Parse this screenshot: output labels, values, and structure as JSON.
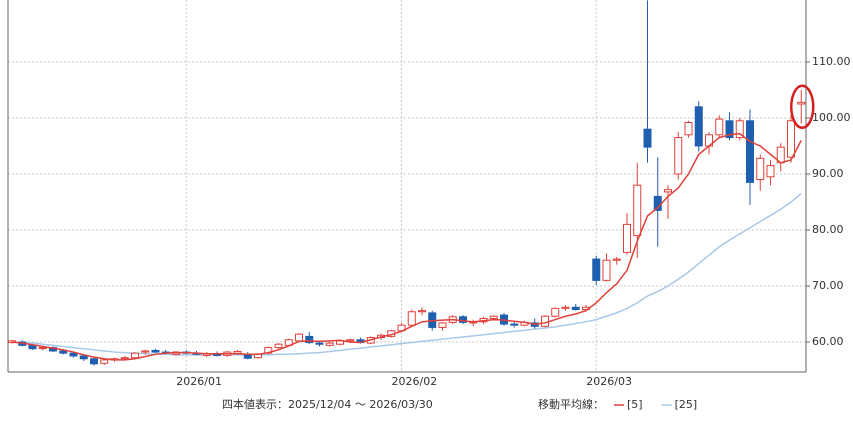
{
  "chart_data": {
    "type": "candlestick",
    "categories": [
      null,
      null,
      null,
      null,
      null,
      null,
      null,
      null,
      null,
      null,
      null,
      null,
      null,
      null,
      null,
      null,
      null,
      "2026/01",
      null,
      null,
      null,
      null,
      null,
      null,
      null,
      null,
      null,
      null,
      null,
      null,
      null,
      null,
      null,
      null,
      null,
      null,
      null,
      null,
      "2026/02",
      null,
      null,
      null,
      null,
      null,
      null,
      null,
      null,
      null,
      null,
      null,
      null,
      null,
      null,
      null,
      null,
      null,
      null,
      "2026/03",
      null,
      null,
      null,
      null,
      null,
      null,
      null,
      null,
      null,
      null,
      null,
      null,
      null,
      null,
      null,
      null,
      null,
      null,
      null,
      null
    ],
    "open": [
      59.9,
      60.0,
      59.4,
      58.9,
      59.0,
      58.4,
      58.0,
      57.5,
      57.0,
      56.2,
      56.8,
      57.0,
      57.2,
      58.2,
      58.5,
      58.2,
      57.8,
      58.2,
      58.0,
      57.6,
      57.9,
      57.6,
      58.0,
      57.8,
      57.2,
      58.0,
      59.0,
      59.4,
      60.2,
      61.0,
      59.8,
      59.4,
      59.6,
      60.2,
      60.4,
      59.8,
      60.8,
      61.0,
      62.0,
      63.0,
      65.4,
      65.2,
      62.6,
      63.5,
      64.5,
      63.4,
      63.6,
      64.2,
      64.8,
      63.2,
      63.0,
      63.4,
      62.8,
      64.6,
      66.0,
      66.2,
      65.8,
      74.8,
      71.0,
      74.6,
      76.0,
      79.0,
      98.0,
      86.0,
      86.8,
      90.0,
      97.0,
      102.0,
      95.0,
      97.0,
      99.5,
      96.5,
      99.5,
      89.0,
      89.5,
      92.0,
      93.0,
      102.5
    ],
    "high": [
      60.4,
      60.3,
      59.6,
      59.3,
      59.2,
      58.7,
      58.3,
      57.8,
      57.2,
      57.0,
      57.2,
      57.5,
      58.2,
      58.6,
      58.8,
      58.6,
      58.4,
      58.5,
      58.4,
      58.2,
      58.3,
      58.4,
      58.6,
      58.2,
      58.0,
      59.2,
      59.8,
      60.6,
      61.6,
      61.8,
      60.2,
      60.0,
      60.4,
      60.6,
      60.8,
      61.0,
      61.5,
      62.2,
      63.4,
      65.8,
      66.2,
      65.6,
      63.6,
      64.8,
      64.8,
      64.0,
      64.5,
      64.8,
      65.2,
      63.6,
      63.8,
      64.2,
      64.8,
      66.2,
      66.6,
      66.8,
      66.6,
      75.4,
      75.8,
      75.2,
      83.0,
      92.0,
      121.0,
      93.0,
      88.0,
      97.5,
      99.5,
      103.0,
      97.5,
      100.5,
      101.0,
      100.0,
      101.5,
      93.5,
      92.5,
      95.5,
      100.5,
      105.0
    ],
    "low": [
      59.7,
      59.2,
      58.6,
      58.5,
      58.2,
      57.8,
      57.2,
      56.6,
      55.8,
      55.9,
      56.5,
      56.8,
      57.0,
      57.8,
      58.0,
      57.8,
      57.6,
      57.8,
      57.6,
      57.3,
      57.4,
      57.3,
      57.7,
      56.9,
      57.0,
      57.8,
      58.8,
      59.2,
      60.0,
      59.6,
      59.2,
      59.2,
      59.4,
      59.8,
      59.7,
      59.6,
      60.4,
      60.8,
      61.8,
      62.8,
      64.8,
      62.0,
      62.0,
      63.2,
      63.2,
      62.8,
      63.2,
      63.8,
      62.9,
      62.6,
      62.8,
      62.4,
      62.6,
      64.4,
      65.6,
      65.6,
      65.4,
      70.2,
      70.8,
      73.8,
      75.6,
      75.0,
      92.0,
      77.0,
      82.0,
      89.0,
      96.5,
      94.0,
      93.5,
      96.5,
      96.0,
      96.0,
      84.5,
      87.0,
      88.0,
      90.5,
      92.0,
      99.0
    ],
    "close": [
      60.2,
      59.4,
      58.8,
      59.0,
      58.4,
      58.0,
      57.5,
      57.0,
      56.1,
      56.8,
      57.0,
      57.2,
      58.0,
      58.4,
      58.2,
      58.0,
      58.2,
      58.0,
      57.8,
      57.9,
      57.6,
      58.2,
      58.3,
      57.1,
      57.8,
      59.0,
      59.6,
      60.4,
      61.4,
      59.9,
      59.6,
      59.8,
      60.2,
      60.4,
      59.9,
      60.8,
      61.2,
      62.0,
      63.0,
      65.4,
      65.6,
      62.6,
      63.4,
      64.5,
      63.5,
      63.6,
      64.2,
      64.6,
      63.2,
      63.0,
      63.5,
      62.8,
      64.6,
      66.0,
      66.2,
      65.8,
      66.2,
      71.0,
      74.6,
      74.8,
      81.0,
      88.0,
      94.8,
      83.5,
      87.2,
      96.5,
      99.2,
      95.0,
      97.0,
      99.8,
      96.5,
      99.5,
      88.5,
      92.8,
      91.5,
      94.8,
      99.5,
      102.8
    ],
    "up_color": "#e0403a",
    "down_color": "#1f5fb0",
    "moving_averages": [
      {
        "name": "[5]",
        "color": "#e0403a",
        "values": [
          60.0,
          59.8,
          59.5,
          59.2,
          58.9,
          58.6,
          58.2,
          57.7,
          57.3,
          57.0,
          56.8,
          56.8,
          57.0,
          57.4,
          57.8,
          58.0,
          58.1,
          58.1,
          58.0,
          57.9,
          57.9,
          57.9,
          57.9,
          57.8,
          57.8,
          58.1,
          58.6,
          59.3,
          60.1,
          60.2,
          60.1,
          60.2,
          60.3,
          60.0,
          59.9,
          60.4,
          60.9,
          61.3,
          61.9,
          62.8,
          63.6,
          63.8,
          63.9,
          64.0,
          63.8,
          63.6,
          63.8,
          64.0,
          63.9,
          63.7,
          63.5,
          63.2,
          63.4,
          64.0,
          64.6,
          65.0,
          65.6,
          67.0,
          68.8,
          70.4,
          72.8,
          78.0,
          82.5,
          84.0,
          86.0,
          87.5,
          90.0,
          93.5,
          95.0,
          96.5,
          97.0,
          97.2,
          95.8,
          95.0,
          93.5,
          92.0,
          92.5,
          96.0
        ]
      },
      {
        "name": "[25]",
        "color": "#a8c8e8",
        "values": [
          60.0,
          59.9,
          59.8,
          59.6,
          59.4,
          59.2,
          59.0,
          58.8,
          58.6,
          58.4,
          58.2,
          58.1,
          58.0,
          57.9,
          57.8,
          57.8,
          57.7,
          57.7,
          57.7,
          57.7,
          57.7,
          57.7,
          57.7,
          57.7,
          57.7,
          57.7,
          57.8,
          57.8,
          57.9,
          58.0,
          58.1,
          58.3,
          58.5,
          58.7,
          58.9,
          59.1,
          59.3,
          59.5,
          59.7,
          59.9,
          60.1,
          60.3,
          60.5,
          60.7,
          60.9,
          61.1,
          61.3,
          61.5,
          61.7,
          61.9,
          62.1,
          62.3,
          62.5,
          62.7,
          63.0,
          63.3,
          63.6,
          64.0,
          64.6,
          65.2,
          66.0,
          67.0,
          68.2,
          69.0,
          70.0,
          71.2,
          72.5,
          74.0,
          75.5,
          77.0,
          78.2,
          79.3,
          80.4,
          81.5,
          82.6,
          83.7,
          85.0,
          86.5
        ]
      }
    ],
    "ylim": [
      54.64,
      121.07
    ],
    "yticks": [
      {
        "value": 60,
        "label": "60.00"
      },
      {
        "value": 70,
        "label": "70.00"
      },
      {
        "value": 80,
        "label": "80.00"
      },
      {
        "value": 90,
        "label": "90.00"
      },
      {
        "value": 100,
        "label": "100.00"
      },
      {
        "value": 110,
        "label": "110.00"
      }
    ],
    "grid": true,
    "range_label": "四本値表示：2025/12/04 〜 2026/03/30",
    "ma_label": "移動平均線："
  }
}
